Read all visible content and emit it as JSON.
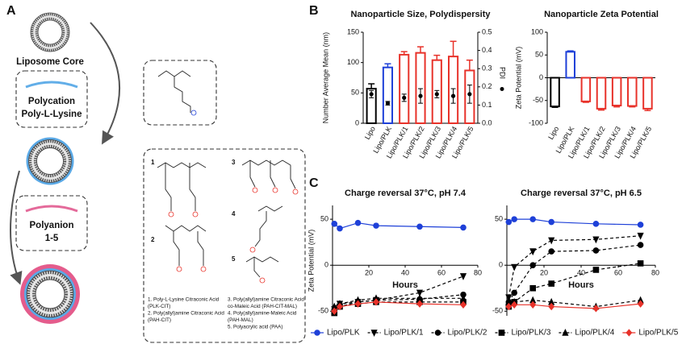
{
  "panel_labels": [
    "A",
    "B",
    "C"
  ],
  "panel_a": {
    "core_label": "Liposome Core",
    "polycation": {
      "title": "Polycation",
      "name": "Poly-L-Lysine"
    },
    "polyanion": {
      "title": "Polyanion",
      "name": "1-5"
    },
    "structure_numbers": [
      "1",
      "2",
      "3",
      "4",
      "5"
    ],
    "key_left": [
      "1. Poly-L-Lysine Citraconic Acid",
      "(PLK-CIT)",
      "2. Poly(allyl)amine Citraconic Acid",
      "(PAH-CIT)"
    ],
    "key_right": [
      "3. Poly(allyl)amine Citraconic Acid",
      "co-Maleic Acid (PAH-CIT-MAL)",
      "4. Poly(allyl)amine-Maleic Acid",
      "(PAH-MAL)",
      "5. Polyacrylic acid (PAA)"
    ]
  },
  "chart_data": [
    {
      "type": "bar",
      "title": "Nanoparticle Size, Polydispersity",
      "categories": [
        "Lipo",
        "Lipo/PLK",
        "Lipo/PLK/1",
        "Lipo/PLK/2",
        "Lipo/PLK/3",
        "Lipo/PLK/4",
        "Lipo/PLK/5"
      ],
      "values": [
        57,
        92,
        113,
        116,
        104,
        110,
        87
      ],
      "errors": [
        8,
        6,
        5,
        10,
        8,
        25,
        17
      ],
      "colors": [
        "#000000",
        "#1e40d8",
        "#e8322a",
        "#e8322a",
        "#e8322a",
        "#e8322a",
        "#e8322a"
      ],
      "hollow": true,
      "ylabel": "Number Average Mean (nm)",
      "ylim": [
        0,
        150
      ],
      "yticks": [
        0,
        50,
        100,
        150
      ],
      "y2label": "PDI",
      "y2lim": [
        0,
        0.5
      ],
      "y2ticks": [
        {
          "value": 0,
          "label": "0.0"
        },
        0.1,
        0.2,
        0.3,
        0.4,
        0.5
      ],
      "dots": {
        "values": [
          0.16,
          0.11,
          0.14,
          0.15,
          0.16,
          0.15,
          0.16
        ],
        "errors": [
          0.02,
          0.01,
          0.02,
          0.04,
          0.02,
          0.04,
          0.05
        ],
        "color": "#000000",
        "axis": "y2"
      }
    },
    {
      "type": "bar",
      "title": "Nanoparticle Zeta Potential",
      "categories": [
        "Lipo",
        "Lipo/PLK",
        "Lipo/PLK/1",
        "Lipo/PLK/2",
        "Lipo/PLK/3",
        "Lipo/PLK/4",
        "Lipo/PLK/5"
      ],
      "values": [
        -63,
        57,
        -52,
        -68,
        -61,
        -62,
        -68
      ],
      "errors": [
        2,
        2,
        2,
        3,
        3,
        2,
        4
      ],
      "colors": [
        "#000000",
        "#1e40d8",
        "#e8322a",
        "#e8322a",
        "#e8322a",
        "#e8322a",
        "#e8322a"
      ],
      "hollow": true,
      "ylabel": "Zeta Potential (mV)",
      "ylim": [
        -100,
        100
      ],
      "yticks": [
        -100,
        -50,
        0,
        50,
        100
      ]
    },
    {
      "type": "line",
      "title": "Charge reversal 37°C, pH 7.4",
      "xlabel": "Hours",
      "ylabel": "Zeta Potential (mV)",
      "x": [
        1,
        4,
        14,
        24,
        48,
        72
      ],
      "xlim": [
        0,
        80
      ],
      "xticks": [
        20,
        40,
        60,
        80
      ],
      "ylim": [
        -55,
        65
      ],
      "yticks": [
        -50,
        0,
        50
      ],
      "series": [
        {
          "name": "Lipo/PLK",
          "color": "#1e40d8",
          "marker": "circle",
          "dashed": false,
          "values": [
            45,
            40,
            46,
            43,
            42,
            41
          ]
        },
        {
          "name": "Lipo/PLK/1",
          "color": "#000000",
          "marker": "triangle-down",
          "dashed": true,
          "values": [
            -48,
            -42,
            -40,
            -38,
            -30,
            -12
          ]
        },
        {
          "name": "Lipo/PLK/2",
          "color": "#000000",
          "marker": "circle",
          "dashed": true,
          "values": [
            -50,
            -45,
            -40,
            -38,
            -37,
            -32
          ]
        },
        {
          "name": "Lipo/PLK/3",
          "color": "#000000",
          "marker": "square",
          "dashed": true,
          "values": [
            -52,
            -45,
            -42,
            -40,
            -40,
            -40
          ]
        },
        {
          "name": "Lipo/PLK/4",
          "color": "#000000",
          "marker": "triangle-up",
          "dashed": true,
          "values": [
            -45,
            -42,
            -38,
            -36,
            -36,
            -36
          ]
        },
        {
          "name": "Lipo/PLK/5",
          "color": "#e8322a",
          "marker": "diamond",
          "dashed": false,
          "values": [
            -50,
            -45,
            -42,
            -40,
            -42,
            -43
          ]
        }
      ]
    },
    {
      "type": "line",
      "title": "Charge reversal 37°C, pH 6.5",
      "xlabel": "Hours",
      "x": [
        1,
        4,
        14,
        24,
        48,
        72
      ],
      "xlim": [
        0,
        80
      ],
      "xticks": [
        20,
        40,
        60,
        80
      ],
      "ylim": [
        -55,
        65
      ],
      "yticks": [
        -50,
        0,
        50
      ],
      "series": [
        {
          "color": "#1e40d8",
          "marker": "circle",
          "dashed": false,
          "values": [
            47,
            50,
            50,
            47,
            45,
            44
          ]
        },
        {
          "color": "#000000",
          "marker": "triangle-down",
          "dashed": true,
          "values": [
            -35,
            -2,
            15,
            27,
            28,
            32
          ]
        },
        {
          "color": "#000000",
          "marker": "circle",
          "dashed": true,
          "values": [
            -40,
            -30,
            0,
            15,
            16,
            22
          ]
        },
        {
          "color": "#000000",
          "marker": "square",
          "dashed": true,
          "values": [
            -45,
            -40,
            -25,
            -20,
            -5,
            2
          ]
        },
        {
          "color": "#000000",
          "marker": "triangle-up",
          "dashed": true,
          "values": [
            -40,
            -40,
            -38,
            -40,
            -45,
            -38
          ]
        },
        {
          "color": "#e8322a",
          "marker": "diamond",
          "dashed": false,
          "values": [
            -45,
            -43,
            -43,
            -45,
            -47,
            -42
          ]
        }
      ]
    }
  ]
}
